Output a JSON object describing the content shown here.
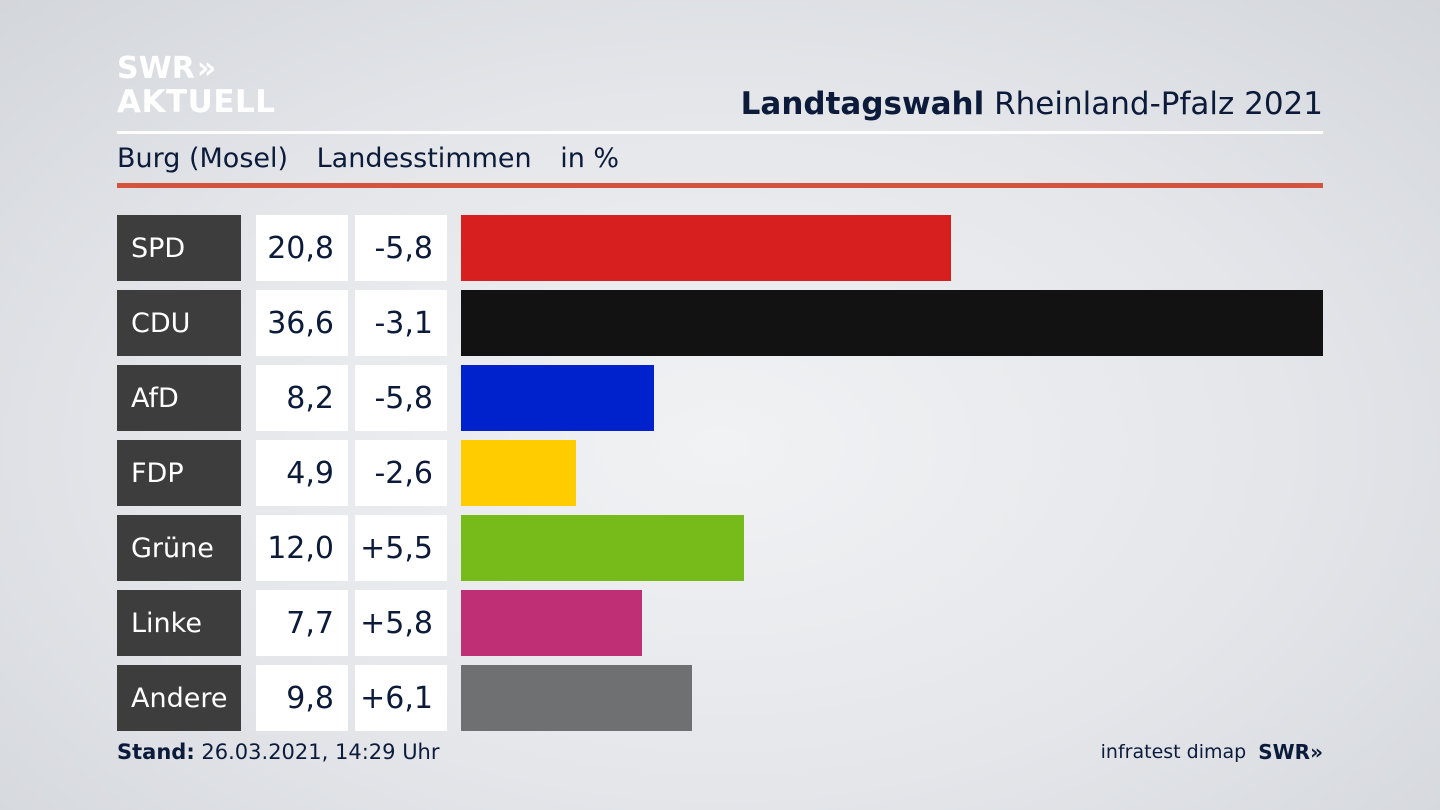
{
  "branding": {
    "logo_line1": "SWR",
    "logo_chevrons": "»",
    "logo_line2": "AKTUELL"
  },
  "header": {
    "title_bold": "Landtagswahl",
    "title_rest": "Rheinland-Pfalz 2021",
    "location": "Burg (Mosel)",
    "vote_type": "Landesstimmen",
    "unit": "in %"
  },
  "footer": {
    "stand_label": "Stand:",
    "stand_value": "26.03.2021, 14:29 Uhr",
    "source": "infratest dimap",
    "broadcaster": "SWR»"
  },
  "chart_data": {
    "type": "bar",
    "orientation": "horizontal",
    "unit": "%",
    "categories": [
      "SPD",
      "CDU",
      "AfD",
      "FDP",
      "Grüne",
      "Linke",
      "Andere"
    ],
    "values": [
      20.8,
      36.6,
      8.2,
      4.9,
      12.0,
      7.7,
      9.8
    ],
    "value_labels": [
      "20,8",
      "36,6",
      "8,2",
      "4,9",
      "12,0",
      "7,7",
      "9,8"
    ],
    "changes": [
      -5.8,
      -3.1,
      -5.8,
      -2.6,
      5.5,
      5.8,
      6.1
    ],
    "change_labels": [
      "-5,8",
      "-3,1",
      "-5,8",
      "-2,6",
      "+5,5",
      "+5,8",
      "+6,1"
    ],
    "colors": [
      "#d71f20",
      "#121212",
      "#0022cc",
      "#ffcc00",
      "#77bb1a",
      "#be2f75",
      "#6f7071"
    ],
    "xlim": [
      0,
      36.6
    ]
  }
}
